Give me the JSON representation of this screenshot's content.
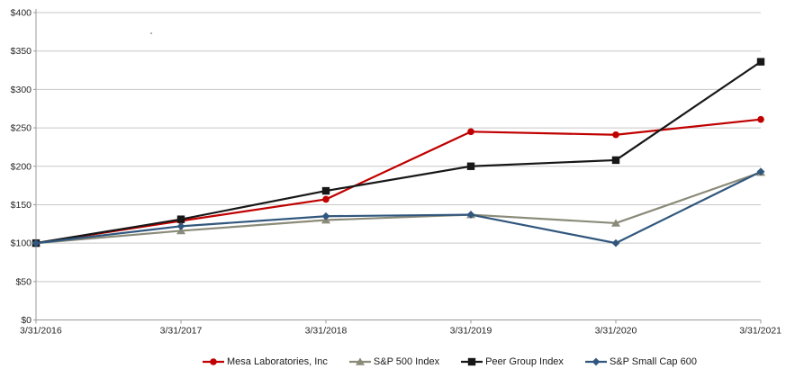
{
  "chart_data": {
    "type": "line",
    "title": "",
    "xlabel": "",
    "ylabel": "",
    "x": [
      "3/31/2016",
      "3/31/2017",
      "3/31/2018",
      "3/31/2019",
      "3/31/2020",
      "3/31/2021"
    ],
    "y_ticks": [
      "$0",
      "$50",
      "$100",
      "$150",
      "$200",
      "$250",
      "$300",
      "$350",
      "$400"
    ],
    "ylim": [
      0,
      400
    ],
    "y_step": 50,
    "grid": "horizontal",
    "legend_position": "bottom",
    "series": [
      {
        "name": "Mesa Laboratories, Inc",
        "color": "#c00000",
        "marker": "circle",
        "values": [
          100,
          129,
          157,
          245,
          241,
          261
        ]
      },
      {
        "name": "S&P 500 Index",
        "color": "#8b8b7a",
        "marker": "triangle",
        "values": [
          100,
          116,
          130,
          137,
          126,
          192
        ]
      },
      {
        "name": "Peer Group Index",
        "color": "#171717",
        "marker": "square",
        "values": [
          100,
          131,
          168,
          200,
          208,
          336
        ]
      },
      {
        "name": "S&P Small Cap 600",
        "color": "#31577d",
        "marker": "diamond",
        "values": [
          100,
          122,
          135,
          137,
          100,
          193
        ]
      }
    ]
  },
  "colors": {
    "gridline": "#c7c7c7",
    "axis": "#9a9a9a",
    "tick_label": "#262626"
  }
}
